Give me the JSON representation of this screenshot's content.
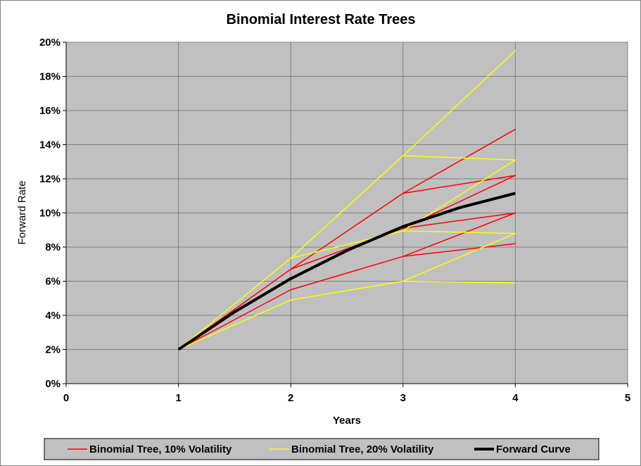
{
  "chart_data": {
    "type": "line",
    "title": "Binomial Interest Rate Trees",
    "xlabel": "Years",
    "ylabel": "Forward Rate",
    "xlim": [
      0,
      5
    ],
    "ylim": [
      0,
      20
    ],
    "x_ticks": [
      "0",
      "1",
      "2",
      "3",
      "4",
      "5"
    ],
    "y_ticks": [
      "0%",
      "2%",
      "4%",
      "6%",
      "8%",
      "10%",
      "12%",
      "14%",
      "16%",
      "18%",
      "20%"
    ],
    "grid": true,
    "legend_position": "bottom",
    "plot_background": "#c0c0c0",
    "series": [
      {
        "name": "Binomial Tree, 10% Volatility",
        "color": "#ff0000",
        "x": [
          1,
          2,
          3,
          4,
          3,
          4,
          3,
          2,
          3,
          4,
          3,
          4,
          3,
          4
        ],
        "y": [
          2.0,
          6.7,
          11.15,
          14.9,
          11.15,
          12.2,
          9.1,
          6.7,
          9.1,
          12.2,
          9.1,
          10.0,
          7.45,
          10.0
        ],
        "extra_path": {
          "x": [
            1,
            2,
            3,
            4
          ],
          "y": [
            2.0,
            5.5,
            7.45,
            8.2
          ]
        }
      },
      {
        "name": "Binomial Tree, 20% Volatility",
        "color": "#ffff00",
        "x": [
          1,
          2,
          3,
          4,
          3,
          4,
          3,
          2,
          3,
          4,
          3,
          4,
          3,
          4
        ],
        "y": [
          2.0,
          7.35,
          13.35,
          19.5,
          13.35,
          13.1,
          8.95,
          7.35,
          8.95,
          13.1,
          8.95,
          8.8,
          6.0,
          8.8
        ],
        "extra_path": {
          "x": [
            1,
            2,
            3,
            4
          ],
          "y": [
            2.0,
            4.9,
            6.0,
            5.9
          ]
        }
      },
      {
        "name": "Forward Curve",
        "color": "#000000",
        "x": [
          1,
          1.5,
          2,
          2.5,
          3,
          3.5,
          4
        ],
        "y": [
          2.0,
          4.2,
          6.15,
          7.8,
          9.2,
          10.3,
          11.15
        ]
      }
    ]
  }
}
